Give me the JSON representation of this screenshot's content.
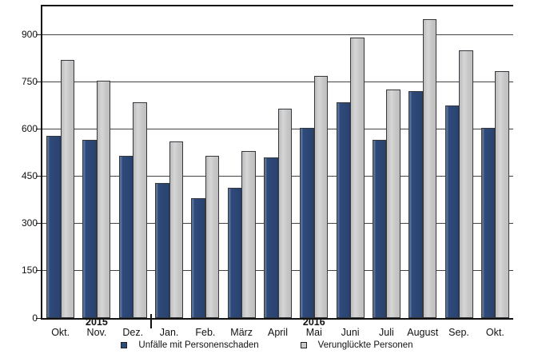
{
  "chart_data": {
    "type": "bar",
    "title": "",
    "categories": [
      "Okt.",
      "Nov.",
      "Dez.",
      "Jan.",
      "Feb.",
      "März",
      "April",
      "Mai",
      "Juni",
      "Juli",
      "August",
      "Sep.",
      "Okt."
    ],
    "series": [
      {
        "name": "Unfälle mit Personenschaden",
        "color": "#2f4a7b",
        "values": [
          580,
          565,
          515,
          430,
          380,
          415,
          510,
          605,
          685,
          565,
          720,
          675,
          605
        ]
      },
      {
        "name": "Verunglückte Personen",
        "color": "#c9c9c9",
        "values": [
          820,
          755,
          685,
          560,
          515,
          530,
          665,
          770,
          890,
          725,
          950,
          850,
          785
        ]
      }
    ],
    "yticks": [
      0,
      150,
      300,
      450,
      600,
      750,
      900
    ],
    "ylim": [
      0,
      990
    ],
    "grid": true,
    "legend_position": "bottom",
    "year_annotations": [
      {
        "label": "2015",
        "category_index": 1
      },
      {
        "label": "2016",
        "category_index": 7
      }
    ],
    "year_separator_after_category_index": 2,
    "xlabel": "",
    "ylabel": ""
  },
  "colors": {
    "accent_dark": "#2f4a7b",
    "accent_gray": "#c9c9c9",
    "axis": "#111111",
    "gridline": "#444444",
    "background": "#ffffff"
  }
}
